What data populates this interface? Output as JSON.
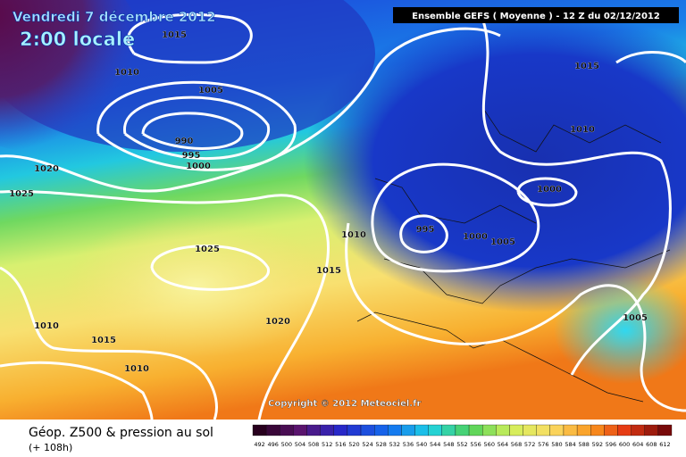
{
  "header": {
    "date": "Vendredi 7 décembre 2012",
    "time": "2:00 locale",
    "model": "Ensemble GEFS ( Moyenne )  -  12 Z du 02/12/2012"
  },
  "isobar_labels": [
    1015,
    1010,
    1005,
    990,
    995,
    1000,
    1020,
    1025,
    1025,
    1010,
    1015,
    1020,
    1010,
    1015,
    1010,
    1015,
    1010,
    1000,
    995,
    1000,
    1005,
    1005
  ],
  "copyright": "Copyright © 2012 Meteociel.fr",
  "footer": {
    "title": "Géop. Z500 & pression au sol",
    "lead": "(+ 108h)"
  },
  "scale": [
    492,
    496,
    500,
    504,
    508,
    512,
    516,
    520,
    524,
    528,
    532,
    536,
    540,
    544,
    548,
    552,
    556,
    560,
    564,
    568,
    572,
    576,
    580,
    584,
    588,
    592,
    596,
    600,
    604,
    608,
    612
  ]
}
